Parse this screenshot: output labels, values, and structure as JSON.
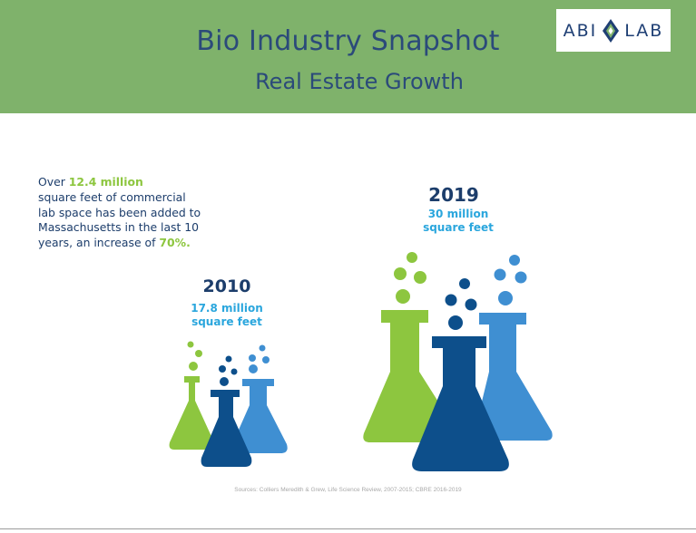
{
  "header": {
    "title": "Bio Industry Snapshot",
    "subtitle": "Real Estate Growth",
    "logo_left": "ABI",
    "logo_right": "LAB"
  },
  "intro": {
    "line1_prefix": "Over ",
    "line1_highlight": "12.4 million",
    "line2": "square feet of commercial",
    "line3": "lab space has been added to",
    "line4": "Massachusetts in the last 10",
    "line5_prefix": "years, an increase of ",
    "line5_highlight": "70%."
  },
  "stat_2010": {
    "year": "2010",
    "amount_line1": "17.8 million",
    "amount_line2": "square feet"
  },
  "stat_2019": {
    "year": "2019",
    "amount_line1": "30 million",
    "amount_line2": "square feet"
  },
  "source": "Sources: Colliers Meredith & Grew, Life Science Review, 2007-2015; CBRE 2016-2019",
  "colors": {
    "header_bg": "#7fb26b",
    "title_text": "#2b4a7a",
    "highlight_green": "#8dc63f",
    "flask_green": "#8dc63f",
    "flask_navy": "#0d4f8b",
    "flask_blue": "#3f8fd2",
    "amount_text": "#2aa6dd"
  }
}
